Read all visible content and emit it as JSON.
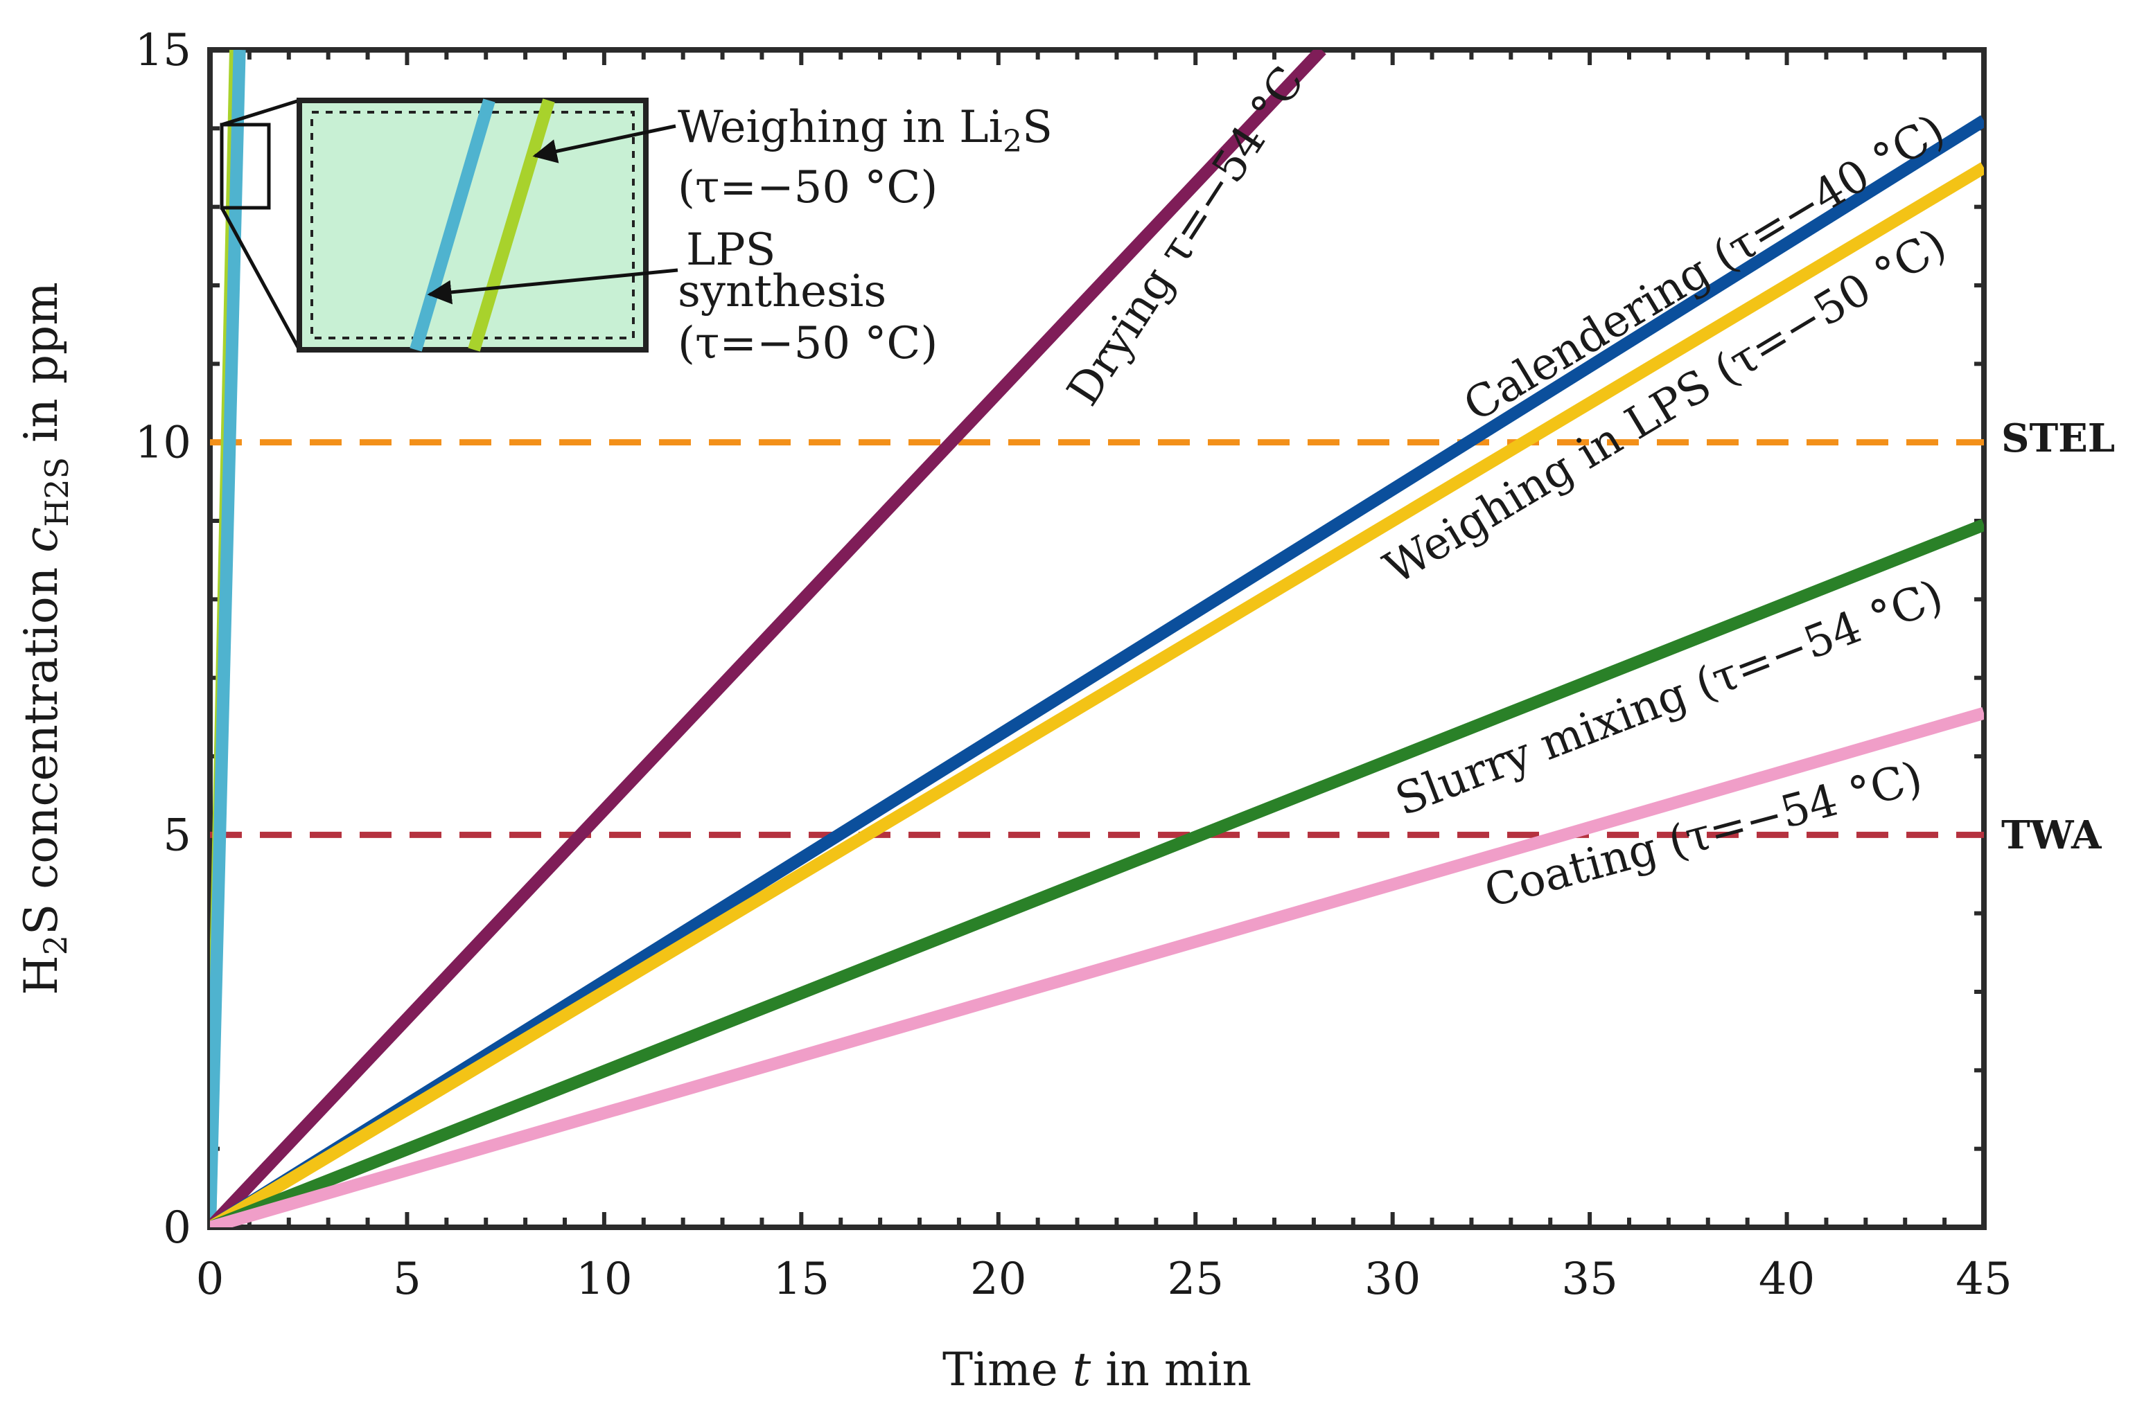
{
  "chart_data": {
    "type": "line",
    "title": "",
    "xlabel_parts": [
      "Time ",
      "t",
      " in min"
    ],
    "ylabel_parts": [
      "H",
      "2",
      "S concentration ",
      "c",
      "H2S",
      " in ppm"
    ],
    "xlim": [
      0,
      45
    ],
    "ylim": [
      0,
      15
    ],
    "x_ticks": [
      0,
      5,
      10,
      15,
      20,
      25,
      30,
      35,
      40,
      45
    ],
    "y_ticks": [
      0,
      5,
      10,
      15
    ],
    "grid": false,
    "legend": "inline labels",
    "series": [
      {
        "id": "weighing-li2s",
        "name": "Weighing in Li2S (τ=−50 °C)",
        "color": "#a8d22c",
        "x": [
          0,
          0.65
        ],
        "y": [
          0,
          15
        ]
      },
      {
        "id": "lps-synthesis",
        "name": "LPS synthesis (τ=−50 °C)",
        "color": "#4fb3cf",
        "x": [
          0,
          0.75
        ],
        "y": [
          0,
          15
        ]
      },
      {
        "id": "drying",
        "name": "Drying τ=−54 °C",
        "label": "Drying τ=−54 °C",
        "color": "#7f1d58",
        "x": [
          0,
          28.2
        ],
        "y": [
          0,
          15
        ]
      },
      {
        "id": "calendering",
        "name": "Calendering (τ=−40 °C)",
        "label": "Calendering (τ=−40 °C)",
        "color": "#0b4f9c",
        "x": [
          0,
          45
        ],
        "y": [
          0,
          14.1
        ]
      },
      {
        "id": "weighing-lps",
        "name": "Weighing in LPS (τ=−50 °C)",
        "label": "Weighing in LPS (τ=−50 °C)",
        "color": "#f3c316",
        "x": [
          0,
          45
        ],
        "y": [
          0,
          13.5
        ]
      },
      {
        "id": "slurry-mixing",
        "name": "Slurry mixing (τ=−54 °C)",
        "label": "Slurry mixing (τ=−54 °C)",
        "color": "#2a8128",
        "x": [
          0,
          45
        ],
        "y": [
          0,
          8.95
        ]
      },
      {
        "id": "coating",
        "name": "Coating (τ=−54 °C)",
        "label": "Coating (τ=−54 °C)",
        "color": "#f09ec8",
        "x": [
          0,
          45
        ],
        "y": [
          0,
          6.55
        ]
      }
    ],
    "reference_lines": [
      {
        "id": "stel",
        "label": "STEL",
        "y": 10,
        "color": "#f39019"
      },
      {
        "id": "twa",
        "label": "TWA",
        "y": 5,
        "color": "#b5323f"
      }
    ],
    "inset": {
      "labels": {
        "weighing_li2s_a": "Weighing in Li",
        "weighing_li2s_sub": "2",
        "weighing_li2s_b": "S",
        "weighing_li2s_temp": "(τ=−50 °C)",
        "lps_line1": "LPS",
        "lps_line2": "synthesis",
        "lps_temp": "(τ=−50 °C)"
      },
      "fill": "#c8f0d4"
    }
  }
}
